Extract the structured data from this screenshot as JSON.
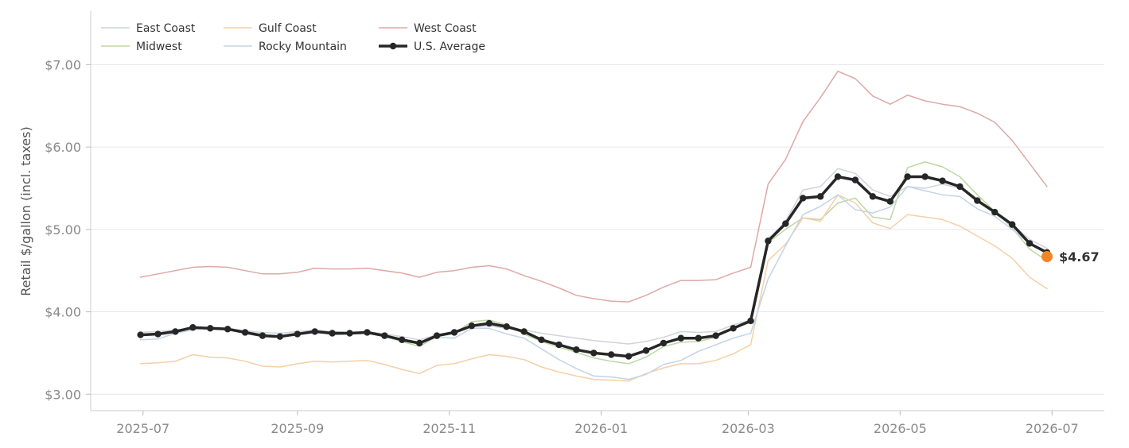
{
  "chart_data": {
    "type": "line",
    "title": "",
    "xlabel": "",
    "ylabel": "Retail $/gallon (incl. taxes)",
    "ylim": [
      2.8,
      7.65
    ],
    "xlim": [
      "2025-06-10",
      "2026-07-22"
    ],
    "grid": "horizontal",
    "legend_position": "top-left",
    "y_ticks": [
      "$3.00",
      "$4.00",
      "$5.00",
      "$6.00",
      "$7.00"
    ],
    "y_tick_values": [
      3,
      4,
      5,
      6,
      7
    ],
    "x_ticks": [
      "2025-07",
      "2025-09",
      "2025-11",
      "2026-01",
      "2026-03",
      "2026-05",
      "2026-07"
    ],
    "x_tick_dates": [
      "2025-07-01",
      "2025-09-01",
      "2025-11-01",
      "2026-01-01",
      "2026-03-01",
      "2026-05-01",
      "2026-07-01"
    ],
    "dates": [
      "2025-06-30",
      "2025-07-07",
      "2025-07-14",
      "2025-07-21",
      "2025-07-28",
      "2025-08-04",
      "2025-08-11",
      "2025-08-18",
      "2025-08-25",
      "2025-09-01",
      "2025-09-08",
      "2025-09-15",
      "2025-09-22",
      "2025-09-29",
      "2025-10-06",
      "2025-10-13",
      "2025-10-20",
      "2025-10-27",
      "2025-11-03",
      "2025-11-10",
      "2025-11-17",
      "2025-11-24",
      "2025-12-01",
      "2025-12-08",
      "2025-12-15",
      "2025-12-22",
      "2025-12-29",
      "2026-01-05",
      "2026-01-12",
      "2026-01-19",
      "2026-01-26",
      "2026-02-02",
      "2026-02-09",
      "2026-02-16",
      "2026-02-23",
      "2026-03-02",
      "2026-03-09",
      "2026-03-16",
      "2026-03-23",
      "2026-03-30",
      "2026-04-06",
      "2026-04-13",
      "2026-04-20",
      "2026-04-27",
      "2026-05-04",
      "2026-05-11",
      "2026-05-18",
      "2026-05-25",
      "2026-06-01",
      "2026-06-08",
      "2026-06-15",
      "2026-06-22",
      "2026-06-29"
    ],
    "series": [
      {
        "name": "East Coast",
        "color": "#d0d3dc",
        "width": 1.5,
        "values": [
          3.75,
          3.76,
          3.78,
          3.8,
          3.81,
          3.8,
          3.77,
          3.75,
          3.74,
          3.76,
          3.78,
          3.76,
          3.75,
          3.76,
          3.73,
          3.7,
          3.66,
          3.72,
          3.76,
          3.82,
          3.83,
          3.8,
          3.78,
          3.74,
          3.71,
          3.68,
          3.65,
          3.63,
          3.61,
          3.64,
          3.69,
          3.76,
          3.75,
          3.76,
          3.84,
          3.9,
          4.88,
          5.1,
          5.48,
          5.52,
          5.74,
          5.68,
          5.48,
          5.4,
          5.52,
          5.5,
          5.55,
          5.5,
          5.36,
          5.2,
          5.06,
          4.88,
          4.77
        ]
      },
      {
        "name": "Midwest",
        "color": "#bcd8a4",
        "width": 1.5,
        "values": [
          3.72,
          3.73,
          3.76,
          3.82,
          3.8,
          3.79,
          3.75,
          3.71,
          3.7,
          3.74,
          3.77,
          3.72,
          3.73,
          3.74,
          3.7,
          3.64,
          3.58,
          3.7,
          3.74,
          3.88,
          3.9,
          3.84,
          3.73,
          3.64,
          3.57,
          3.51,
          3.44,
          3.4,
          3.37,
          3.45,
          3.58,
          3.63,
          3.64,
          3.69,
          3.81,
          3.87,
          4.84,
          5.0,
          5.14,
          5.12,
          5.32,
          5.38,
          5.15,
          5.12,
          5.75,
          5.82,
          5.76,
          5.64,
          5.42,
          5.22,
          5.02,
          4.76,
          4.62
        ]
      },
      {
        "name": "Gulf Coast",
        "color": "#f6cfa5",
        "width": 1.5,
        "values": [
          3.37,
          3.38,
          3.4,
          3.48,
          3.45,
          3.44,
          3.4,
          3.34,
          3.33,
          3.37,
          3.4,
          3.39,
          3.4,
          3.41,
          3.36,
          3.3,
          3.25,
          3.35,
          3.37,
          3.43,
          3.48,
          3.46,
          3.42,
          3.33,
          3.27,
          3.22,
          3.18,
          3.17,
          3.16,
          3.25,
          3.32,
          3.37,
          3.37,
          3.41,
          3.49,
          3.6,
          4.62,
          4.82,
          5.14,
          5.1,
          5.42,
          5.32,
          5.08,
          5.01,
          5.18,
          5.15,
          5.12,
          5.04,
          4.92,
          4.8,
          4.65,
          4.42,
          4.28
        ]
      },
      {
        "name": "Rocky Mountain",
        "color": "#c3d4e7",
        "width": 1.5,
        "values": [
          3.66,
          3.67,
          3.74,
          3.78,
          3.81,
          3.79,
          3.77,
          3.72,
          3.71,
          3.72,
          3.75,
          3.74,
          3.74,
          3.75,
          3.72,
          3.66,
          3.63,
          3.69,
          3.68,
          3.8,
          3.8,
          3.73,
          3.68,
          3.55,
          3.42,
          3.31,
          3.22,
          3.21,
          3.18,
          3.24,
          3.36,
          3.41,
          3.52,
          3.6,
          3.68,
          3.74,
          4.4,
          4.8,
          5.18,
          5.28,
          5.42,
          5.24,
          5.2,
          5.27,
          5.52,
          5.47,
          5.42,
          5.4,
          5.25,
          5.16,
          5.0,
          4.83,
          4.7
        ]
      },
      {
        "name": "West Coast",
        "color": "#dea8a5",
        "width": 1.5,
        "values": [
          4.42,
          4.46,
          4.5,
          4.54,
          4.55,
          4.54,
          4.5,
          4.46,
          4.46,
          4.48,
          4.53,
          4.52,
          4.52,
          4.53,
          4.5,
          4.47,
          4.42,
          4.48,
          4.5,
          4.54,
          4.56,
          4.52,
          4.44,
          4.37,
          4.29,
          4.2,
          4.16,
          4.13,
          4.12,
          4.2,
          4.3,
          4.38,
          4.38,
          4.39,
          4.47,
          4.54,
          5.55,
          5.85,
          6.31,
          6.6,
          6.92,
          6.83,
          6.62,
          6.52,
          6.63,
          6.56,
          6.52,
          6.49,
          6.41,
          6.3,
          6.08,
          5.8,
          5.52
        ]
      },
      {
        "name": "U.S. Average",
        "color": "#262626",
        "width": 3.5,
        "markers": true,
        "values": [
          3.72,
          3.73,
          3.76,
          3.81,
          3.8,
          3.79,
          3.75,
          3.71,
          3.7,
          3.73,
          3.76,
          3.74,
          3.74,
          3.75,
          3.71,
          3.66,
          3.62,
          3.71,
          3.75,
          3.83,
          3.86,
          3.82,
          3.76,
          3.66,
          3.6,
          3.54,
          3.5,
          3.48,
          3.46,
          3.53,
          3.62,
          3.68,
          3.68,
          3.71,
          3.8,
          3.89,
          4.86,
          5.07,
          5.38,
          5.4,
          5.64,
          5.6,
          5.4,
          5.34,
          5.64,
          5.64,
          5.59,
          5.52,
          5.35,
          5.21,
          5.06,
          4.83,
          4.72
        ]
      }
    ],
    "annotation": {
      "label": "$4.67",
      "date": "2026-06-29",
      "value": 4.67,
      "color": "#f28524"
    }
  }
}
